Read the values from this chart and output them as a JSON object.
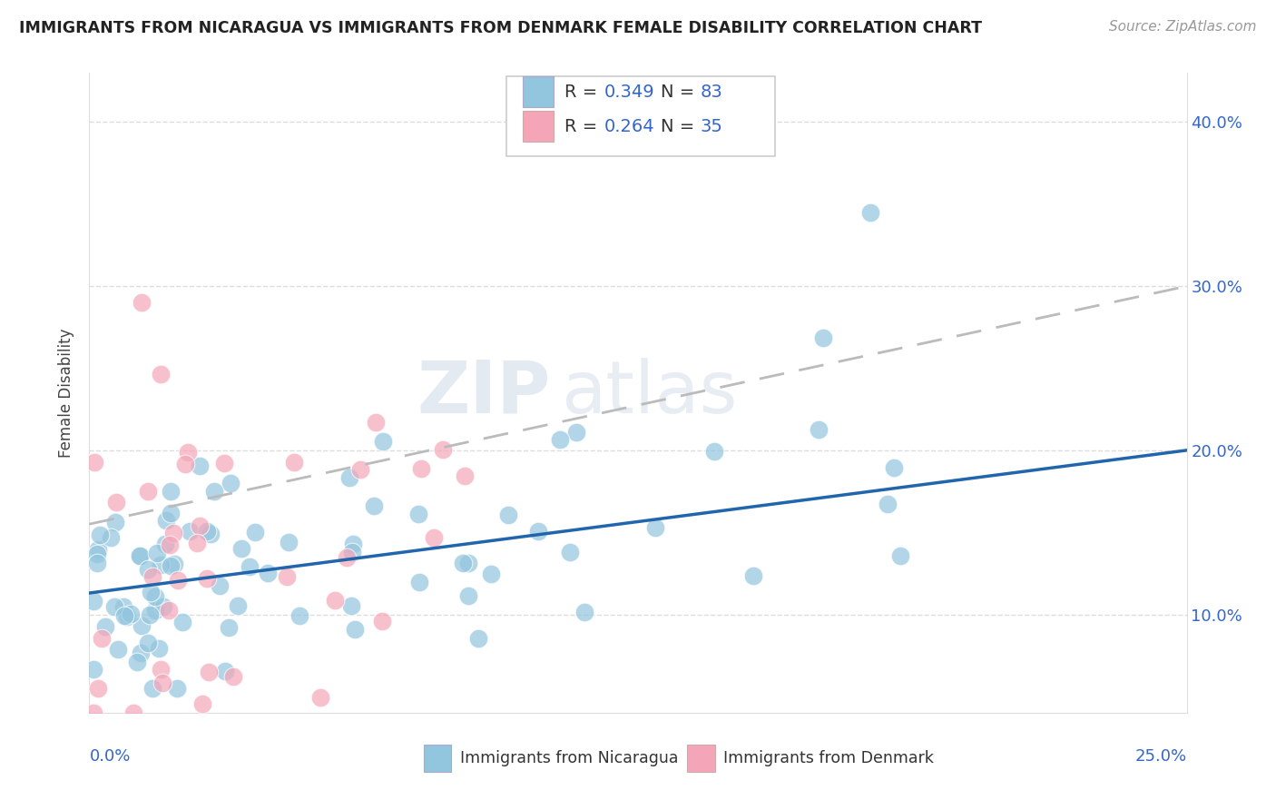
{
  "title": "IMMIGRANTS FROM NICARAGUA VS IMMIGRANTS FROM DENMARK FEMALE DISABILITY CORRELATION CHART",
  "source": "Source: ZipAtlas.com",
  "ylabel": "Female Disability",
  "ytick_labels": [
    "10.0%",
    "20.0%",
    "30.0%",
    "40.0%"
  ],
  "ytick_values": [
    0.1,
    0.2,
    0.3,
    0.4
  ],
  "xlim": [
    0.0,
    0.25
  ],
  "ylim": [
    0.04,
    0.43
  ],
  "legend1_r": "0.349",
  "legend1_n": "83",
  "legend2_r": "0.264",
  "legend2_n": "35",
  "color_nicaragua": "#92c5de",
  "color_denmark": "#f4a6b8",
  "color_line_nicaragua": "#2166ac",
  "color_line_denmark": "#d6604d",
  "watermark_zip": "ZIP",
  "watermark_atlas": "atlas"
}
